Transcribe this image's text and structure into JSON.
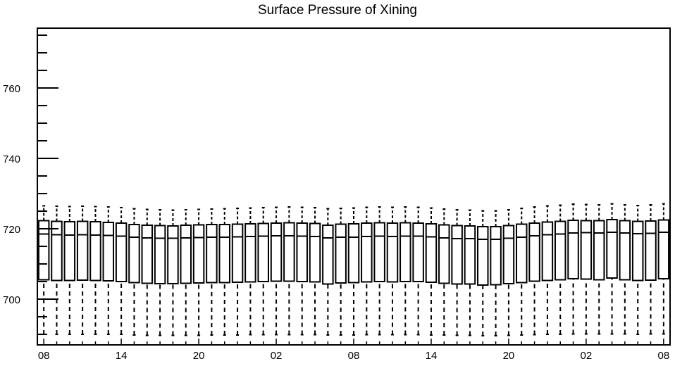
{
  "chart_data": {
    "type": "box",
    "title": "Surface Pressure of Xining",
    "xlabel": "",
    "ylabel": "",
    "ylim": [
      687,
      777
    ],
    "y_ticks": [
      700,
      720,
      740,
      760
    ],
    "x_tick_labels": [
      "08",
      "14",
      "20",
      "02",
      "08",
      "14",
      "20",
      "02",
      "08"
    ],
    "x_tick_positions": [
      1,
      7,
      13,
      19,
      25,
      31,
      37,
      43,
      49
    ],
    "grid": false,
    "boxes": [
      {
        "x": 1,
        "whisker_low": 690,
        "q1": 705.5,
        "median": 718.5,
        "q3": 722.3,
        "whisker_high": 726.5
      },
      {
        "x": 2,
        "whisker_low": 690,
        "q1": 705.3,
        "median": 718.3,
        "q3": 722.1,
        "whisker_high": 726.4
      },
      {
        "x": 3,
        "whisker_low": 690,
        "q1": 705.3,
        "median": 718.2,
        "q3": 722.0,
        "whisker_high": 726.3
      },
      {
        "x": 4,
        "whisker_low": 690,
        "q1": 705.4,
        "median": 718.3,
        "q3": 722.1,
        "whisker_high": 726.4
      },
      {
        "x": 5,
        "whisker_low": 690,
        "q1": 705.3,
        "median": 718.2,
        "q3": 722.0,
        "whisker_high": 726.3
      },
      {
        "x": 6,
        "whisker_low": 690,
        "q1": 705.2,
        "median": 718.1,
        "q3": 721.8,
        "whisker_high": 726.2
      },
      {
        "x": 7,
        "whisker_low": 690,
        "q1": 705.0,
        "median": 717.9,
        "q3": 721.6,
        "whisker_high": 726.0
      },
      {
        "x": 8,
        "whisker_low": 689.8,
        "q1": 704.7,
        "median": 717.6,
        "q3": 721.2,
        "whisker_high": 725.7
      },
      {
        "x": 9,
        "whisker_low": 689.7,
        "q1": 704.5,
        "median": 717.4,
        "q3": 721.0,
        "whisker_high": 725.5
      },
      {
        "x": 10,
        "whisker_low": 689.7,
        "q1": 704.4,
        "median": 717.3,
        "q3": 720.9,
        "whisker_high": 725.4
      },
      {
        "x": 11,
        "whisker_low": 689.7,
        "q1": 704.4,
        "median": 717.3,
        "q3": 720.8,
        "whisker_high": 725.3
      },
      {
        "x": 12,
        "whisker_low": 689.7,
        "q1": 704.5,
        "median": 717.4,
        "q3": 721.0,
        "whisker_high": 725.4
      },
      {
        "x": 13,
        "whisker_low": 689.7,
        "q1": 704.6,
        "median": 717.5,
        "q3": 721.1,
        "whisker_high": 725.5
      },
      {
        "x": 14,
        "whisker_low": 689.8,
        "q1": 704.7,
        "median": 717.6,
        "q3": 721.2,
        "whisker_high": 725.6
      },
      {
        "x": 15,
        "whisker_low": 689.8,
        "q1": 704.7,
        "median": 717.6,
        "q3": 721.2,
        "whisker_high": 725.7
      },
      {
        "x": 16,
        "whisker_low": 689.8,
        "q1": 704.8,
        "median": 717.7,
        "q3": 721.3,
        "whisker_high": 725.8
      },
      {
        "x": 17,
        "whisker_low": 689.9,
        "q1": 704.9,
        "median": 717.8,
        "q3": 721.4,
        "whisker_high": 725.9
      },
      {
        "x": 18,
        "whisker_low": 689.9,
        "q1": 705.0,
        "median": 717.9,
        "q3": 721.5,
        "whisker_high": 726.0
      },
      {
        "x": 19,
        "whisker_low": 689.9,
        "q1": 705.1,
        "median": 718.0,
        "q3": 721.6,
        "whisker_high": 726.1
      },
      {
        "x": 20,
        "whisker_low": 689.9,
        "q1": 705.1,
        "median": 718.0,
        "q3": 721.7,
        "whisker_high": 726.2
      },
      {
        "x": 21,
        "whisker_low": 689.9,
        "q1": 705.0,
        "median": 717.9,
        "q3": 721.6,
        "whisker_high": 726.1
      },
      {
        "x": 22,
        "whisker_low": 689.9,
        "q1": 704.9,
        "median": 717.8,
        "q3": 721.5,
        "whisker_high": 726.0
      },
      {
        "x": 23,
        "whisker_low": 689.8,
        "q1": 704.3,
        "median": 717.4,
        "q3": 721.0,
        "whisker_high": 725.7
      },
      {
        "x": 24,
        "whisker_low": 689.8,
        "q1": 704.6,
        "median": 717.6,
        "q3": 721.3,
        "whisker_high": 725.8
      },
      {
        "x": 25,
        "whisker_low": 689.8,
        "q1": 704.7,
        "median": 717.6,
        "q3": 721.4,
        "whisker_high": 725.9
      },
      {
        "x": 26,
        "whisker_low": 689.9,
        "q1": 704.9,
        "median": 717.8,
        "q3": 721.6,
        "whisker_high": 726.1
      },
      {
        "x": 27,
        "whisker_low": 689.9,
        "q1": 705.0,
        "median": 717.9,
        "q3": 721.7,
        "whisker_high": 726.2
      },
      {
        "x": 28,
        "whisker_low": 689.9,
        "q1": 704.9,
        "median": 717.8,
        "q3": 721.6,
        "whisker_high": 726.1
      },
      {
        "x": 29,
        "whisker_low": 689.9,
        "q1": 705.0,
        "median": 717.9,
        "q3": 721.7,
        "whisker_high": 726.2
      },
      {
        "x": 30,
        "whisker_low": 689.9,
        "q1": 705.0,
        "median": 717.9,
        "q3": 721.6,
        "whisker_high": 726.1
      },
      {
        "x": 31,
        "whisker_low": 689.8,
        "q1": 704.8,
        "median": 717.7,
        "q3": 721.4,
        "whisker_high": 725.9
      },
      {
        "x": 32,
        "whisker_low": 689.8,
        "q1": 704.5,
        "median": 717.4,
        "q3": 721.1,
        "whisker_high": 725.6
      },
      {
        "x": 33,
        "whisker_low": 689.7,
        "q1": 704.3,
        "median": 717.2,
        "q3": 720.9,
        "whisker_high": 725.4
      },
      {
        "x": 34,
        "whisker_low": 689.7,
        "q1": 704.3,
        "median": 717.2,
        "q3": 720.8,
        "whisker_high": 725.3
      },
      {
        "x": 35,
        "whisker_low": 689.6,
        "q1": 704.0,
        "median": 717.0,
        "q3": 720.6,
        "whisker_high": 725.1
      },
      {
        "x": 36,
        "whisker_low": 689.6,
        "q1": 704.1,
        "median": 717.0,
        "q3": 720.6,
        "whisker_high": 725.1
      },
      {
        "x": 37,
        "whisker_low": 689.7,
        "q1": 704.4,
        "median": 717.3,
        "q3": 720.9,
        "whisker_high": 725.4
      },
      {
        "x": 38,
        "whisker_low": 689.8,
        "q1": 704.7,
        "median": 717.6,
        "q3": 721.3,
        "whisker_high": 725.8
      },
      {
        "x": 39,
        "whisker_low": 689.9,
        "q1": 705.1,
        "median": 718.0,
        "q3": 721.6,
        "whisker_high": 726.2
      },
      {
        "x": 40,
        "whisker_low": 690.0,
        "q1": 705.3,
        "median": 718.3,
        "q3": 721.9,
        "whisker_high": 726.5
      },
      {
        "x": 41,
        "whisker_low": 690.0,
        "q1": 705.5,
        "median": 718.5,
        "q3": 722.1,
        "whisker_high": 726.7
      },
      {
        "x": 42,
        "whisker_low": 690.1,
        "q1": 705.8,
        "median": 718.8,
        "q3": 722.4,
        "whisker_high": 727.0
      },
      {
        "x": 43,
        "whisker_low": 690.1,
        "q1": 705.7,
        "median": 718.9,
        "q3": 722.3,
        "whisker_high": 726.9
      },
      {
        "x": 44,
        "whisker_low": 690.1,
        "q1": 705.5,
        "median": 718.8,
        "q3": 722.3,
        "whisker_high": 726.8
      },
      {
        "x": 45,
        "whisker_low": 690.1,
        "q1": 706.0,
        "median": 719.0,
        "q3": 722.6,
        "whisker_high": 727.1
      },
      {
        "x": 46,
        "whisker_low": 690.1,
        "q1": 705.5,
        "median": 718.8,
        "q3": 722.3,
        "whisker_high": 726.8
      },
      {
        "x": 47,
        "whisker_low": 690.0,
        "q1": 705.3,
        "median": 718.6,
        "q3": 722.1,
        "whisker_high": 726.6
      },
      {
        "x": 48,
        "whisker_low": 690.1,
        "q1": 705.4,
        "median": 718.7,
        "q3": 722.2,
        "whisker_high": 726.8
      },
      {
        "x": 49,
        "whisker_low": 690.1,
        "q1": 705.8,
        "median": 719.0,
        "q3": 722.5,
        "whisker_high": 727.1
      }
    ]
  }
}
